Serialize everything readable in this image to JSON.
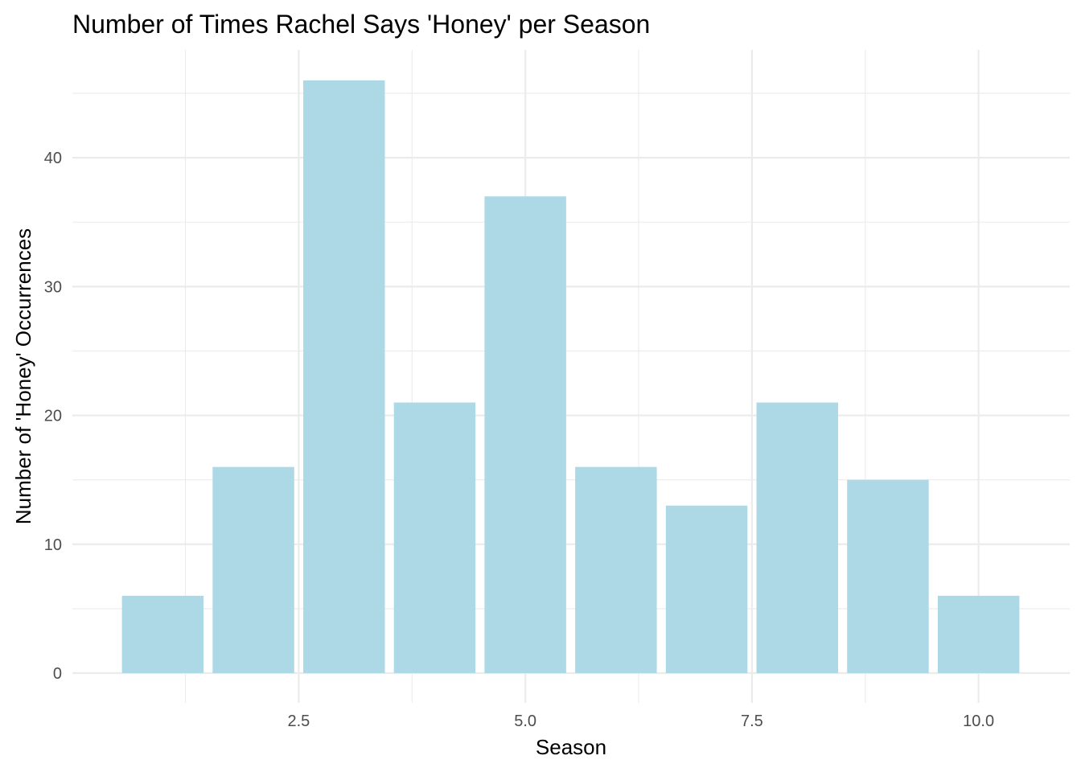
{
  "chart_data": {
    "type": "bar",
    "title": "Number of Times Rachel Says 'Honey' per Season",
    "xlabel": "Season",
    "ylabel": "Number of 'Honey' Occurrences",
    "x": [
      1,
      2,
      3,
      4,
      5,
      6,
      7,
      8,
      9,
      10
    ],
    "values": [
      6,
      16,
      46,
      21,
      37,
      16,
      13,
      21,
      15,
      6
    ],
    "xlim": [
      0.5,
      10.5
    ],
    "ylim": [
      0,
      46
    ],
    "x_ticks": [
      2.5,
      5.0,
      7.5,
      10.0
    ],
    "x_tick_labels": [
      "2.5",
      "5.0",
      "7.5",
      "10.0"
    ],
    "y_ticks": [
      0,
      10,
      20,
      30,
      40
    ],
    "y_tick_labels": [
      "0",
      "10",
      "20",
      "30",
      "40"
    ],
    "bar_color": "#add8e6",
    "grid": true,
    "legend": "none"
  }
}
